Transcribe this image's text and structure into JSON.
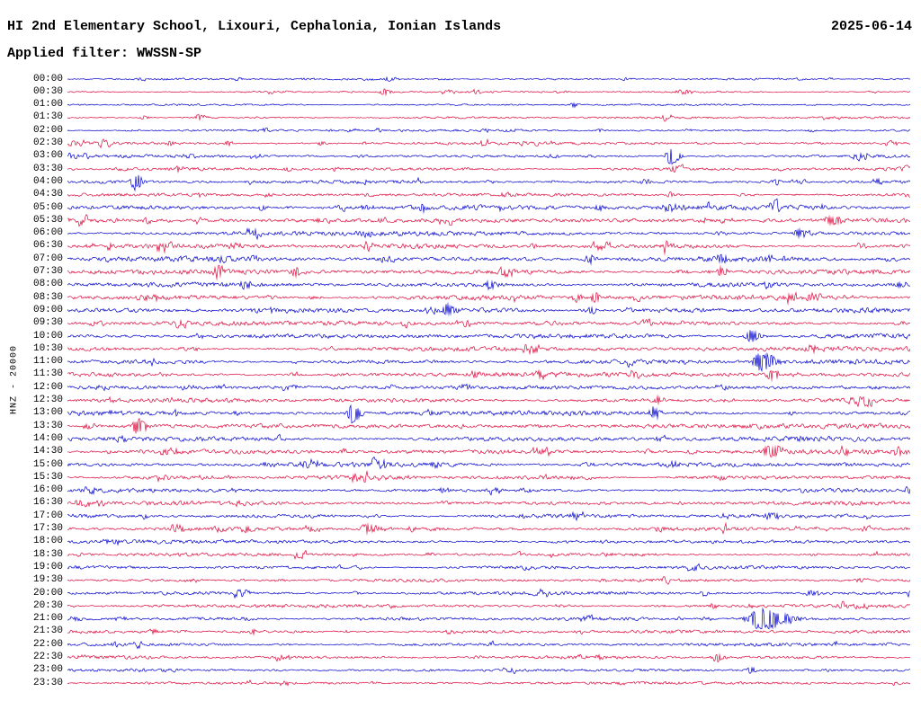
{
  "chart_data": {
    "type": "line",
    "title": "HI 2nd Elementary School, Lixouri, Cephalonia, Ionian Islands",
    "date": "2025-06-14",
    "filter_label": "Applied filter: WWSSN-SP",
    "filter": "WWSSN-SP",
    "ylabel": "HNZ - 20000",
    "channel": "HNZ",
    "counts_per_line": 20000,
    "minutes_per_line": 30,
    "grid": false,
    "legend": false,
    "palette": {
      "blue": "#0000cc",
      "red": "#dc0a3c"
    },
    "rows": [
      {
        "time": "00:00",
        "color": "blue",
        "noise": 1.0,
        "events": [
          [
            0.38,
            3
          ]
        ]
      },
      {
        "time": "00:30",
        "color": "red",
        "noise": 1.0,
        "events": [
          [
            0.375,
            4
          ]
        ]
      },
      {
        "time": "01:00",
        "color": "blue",
        "noise": 1.0,
        "events": [
          [
            0.6,
            2.5
          ]
        ]
      },
      {
        "time": "01:30",
        "color": "red",
        "noise": 1.1,
        "events": [
          [
            0.09,
            2.5
          ],
          [
            0.155,
            3.5
          ],
          [
            0.71,
            2.5
          ]
        ]
      },
      {
        "time": "02:00",
        "color": "blue",
        "noise": 1.2,
        "events": [
          [
            0.63,
            2
          ]
        ]
      },
      {
        "time": "02:30",
        "color": "red",
        "noise": 1.5,
        "events": [
          [
            0.12,
            2.5
          ],
          [
            0.19,
            2.5
          ],
          [
            0.3,
            2.5
          ]
        ]
      },
      {
        "time": "03:00",
        "color": "blue",
        "noise": 1.6,
        "events": [
          [
            0.715,
            10,
            0.8
          ]
        ]
      },
      {
        "time": "03:30",
        "color": "red",
        "noise": 1.6,
        "events": [
          [
            0.13,
            3
          ],
          [
            0.26,
            3
          ]
        ]
      },
      {
        "time": "04:00",
        "color": "blue",
        "noise": 1.7,
        "events": [
          [
            0.08,
            9,
            0.8
          ],
          [
            0.35,
            2.5
          ],
          [
            0.84,
            4
          ]
        ]
      },
      {
        "time": "04:30",
        "color": "red",
        "noise": 1.7,
        "events": [
          [
            0.715,
            3
          ]
        ]
      },
      {
        "time": "05:00",
        "color": "blue",
        "noise": 2.6,
        "events": [
          [
            0.23,
            3
          ],
          [
            0.63,
            3
          ],
          [
            0.71,
            3.5
          ]
        ]
      },
      {
        "time": "05:30",
        "color": "red",
        "noise": 2.6,
        "events": [
          [
            0.905,
            5,
            1.4
          ]
        ]
      },
      {
        "time": "06:00",
        "color": "blue",
        "noise": 2.4,
        "events": [
          [
            0.866,
            4
          ]
        ]
      },
      {
        "time": "06:30",
        "color": "red",
        "noise": 2.4,
        "events": [
          [
            0.625,
            3.5
          ],
          [
            0.71,
            3
          ]
        ]
      },
      {
        "time": "07:00",
        "color": "blue",
        "noise": 2.6,
        "events": [
          [
            0.62,
            4
          ],
          [
            0.775,
            4.5
          ]
        ]
      },
      {
        "time": "07:30",
        "color": "red",
        "noise": 2.6,
        "events": [
          [
            0.27,
            5
          ],
          [
            0.775,
            5
          ]
        ]
      },
      {
        "time": "08:00",
        "color": "blue",
        "noise": 2.7,
        "events": [
          [
            0.5,
            5
          ],
          [
            0.83,
            4.5
          ]
        ]
      },
      {
        "time": "08:30",
        "color": "red",
        "noise": 2.7,
        "events": [
          [
            0.625,
            5
          ],
          [
            0.88,
            3
          ]
        ]
      },
      {
        "time": "09:00",
        "color": "blue",
        "noise": 2.6,
        "events": [
          [
            0.45,
            6
          ],
          [
            0.62,
            5
          ]
        ]
      },
      {
        "time": "09:30",
        "color": "red",
        "noise": 2.4,
        "events": []
      },
      {
        "time": "10:00",
        "color": "blue",
        "noise": 2.6,
        "events": [
          [
            0.81,
            7,
            1.2
          ]
        ]
      },
      {
        "time": "10:30",
        "color": "red",
        "noise": 2.4,
        "events": [
          [
            0.15,
            2.5
          ]
        ]
      },
      {
        "time": "11:00",
        "color": "blue",
        "noise": 2.5,
        "events": [
          [
            0.822,
            10,
            1.4
          ]
        ]
      },
      {
        "time": "11:30",
        "color": "red",
        "noise": 2.5,
        "events": [
          [
            0.835,
            6
          ]
        ]
      },
      {
        "time": "12:00",
        "color": "blue",
        "noise": 2.3,
        "events": []
      },
      {
        "time": "12:30",
        "color": "red",
        "noise": 2.4,
        "events": [
          [
            0.7,
            4
          ]
        ]
      },
      {
        "time": "13:00",
        "color": "blue",
        "noise": 2.5,
        "events": [
          [
            0.337,
            12,
            0.7
          ],
          [
            0.695,
            6
          ]
        ]
      },
      {
        "time": "13:30",
        "color": "red",
        "noise": 2.5,
        "events": [
          [
            0.082,
            8
          ]
        ]
      },
      {
        "time": "14:00",
        "color": "blue",
        "noise": 2.5,
        "events": [
          [
            0.87,
            3.5
          ]
        ]
      },
      {
        "time": "14:30",
        "color": "red",
        "noise": 2.4,
        "events": [
          [
            0.833,
            7,
            1.5
          ],
          [
            0.985,
            5
          ]
        ]
      },
      {
        "time": "15:00",
        "color": "blue",
        "noise": 2.4,
        "events": []
      },
      {
        "time": "15:30",
        "color": "red",
        "noise": 2.2,
        "events": [
          [
            0.37,
            3
          ]
        ]
      },
      {
        "time": "16:00",
        "color": "blue",
        "noise": 2.1,
        "events": []
      },
      {
        "time": "16:30",
        "color": "red",
        "noise": 2.1,
        "events": []
      },
      {
        "time": "17:00",
        "color": "blue",
        "noise": 2.0,
        "events": [
          [
            0.54,
            2.5
          ]
        ]
      },
      {
        "time": "17:30",
        "color": "red",
        "noise": 2.0,
        "events": [
          [
            0.353,
            5,
            1.3
          ]
        ]
      },
      {
        "time": "18:00",
        "color": "blue",
        "noise": 1.9,
        "events": []
      },
      {
        "time": "18:30",
        "color": "red",
        "noise": 1.7,
        "events": []
      },
      {
        "time": "19:00",
        "color": "blue",
        "noise": 1.8,
        "events": []
      },
      {
        "time": "19:30",
        "color": "red",
        "noise": 1.6,
        "events": []
      },
      {
        "time": "20:00",
        "color": "blue",
        "noise": 1.9,
        "events": [
          [
            0.34,
            2.5
          ],
          [
            0.755,
            3
          ]
        ]
      },
      {
        "time": "20:30",
        "color": "red",
        "noise": 1.8,
        "events": [
          [
            0.765,
            3
          ]
        ]
      },
      {
        "time": "21:00",
        "color": "blue",
        "noise": 1.8,
        "events": [
          [
            0.823,
            12,
            2.2
          ]
        ]
      },
      {
        "time": "21:30",
        "color": "red",
        "noise": 1.8,
        "events": [
          [
            0.1,
            2.5
          ],
          [
            0.22,
            2.5
          ]
        ]
      },
      {
        "time": "22:00",
        "color": "blue",
        "noise": 1.8,
        "events": [
          [
            0.055,
            2.5
          ]
        ]
      },
      {
        "time": "22:30",
        "color": "red",
        "noise": 1.7,
        "events": [
          [
            0.77,
            5
          ]
        ]
      },
      {
        "time": "23:00",
        "color": "blue",
        "noise": 1.5,
        "events": [
          [
            0.81,
            3
          ]
        ]
      },
      {
        "time": "23:30",
        "color": "red",
        "noise": 1.4,
        "events": []
      }
    ]
  }
}
